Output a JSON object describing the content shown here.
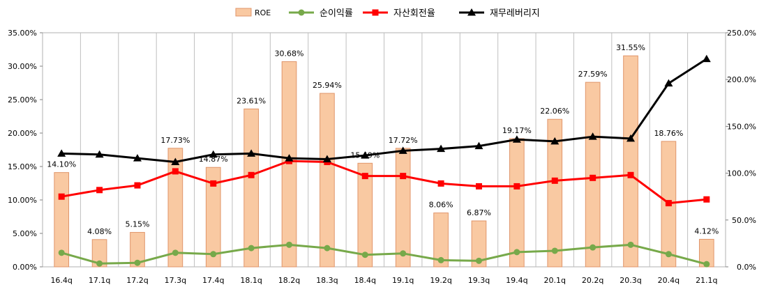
{
  "chart_data": {
    "type": "bar",
    "categories": [
      "16.4q",
      "17.1q",
      "17.2q",
      "17.3q",
      "17.4q",
      "18.1q",
      "18.2q",
      "18.3q",
      "18.4q",
      "19.1q",
      "19.2q",
      "19.3q",
      "19.4q",
      "20.1q",
      "20.2q",
      "20.3q",
      "20.4q",
      "21.1q"
    ],
    "bar_series": {
      "name": "ROE",
      "axis": "left",
      "values": [
        14.1,
        4.08,
        5.15,
        17.73,
        14.87,
        23.61,
        30.68,
        25.94,
        15.49,
        17.72,
        8.06,
        6.87,
        19.17,
        22.06,
        27.59,
        31.55,
        18.76,
        4.12
      ],
      "data_labels": [
        "14.10%",
        "4.08%",
        "5.15%",
        "17.73%",
        "14.87%",
        "23.61%",
        "30.68%",
        "25.94%",
        "15.49%",
        "17.72%",
        "8.06%",
        "6.87%",
        "19.17%",
        "22.06%",
        "27.59%",
        "31.55%",
        "18.76%",
        "4.12%"
      ],
      "fill": "#f9c9a2",
      "stroke": "#e0956a"
    },
    "line_series": [
      {
        "name": "순이익률",
        "axis": "left",
        "marker": "circle",
        "color": "#77a94a",
        "values": [
          2.1,
          0.5,
          0.6,
          2.1,
          1.9,
          2.8,
          3.3,
          2.8,
          1.8,
          2.0,
          1.0,
          0.9,
          2.2,
          2.4,
          2.9,
          3.3,
          1.9,
          0.4
        ]
      },
      {
        "name": "자산회전율",
        "axis": "right",
        "marker": "square",
        "color": "#ff0000",
        "values": [
          75,
          82,
          87,
          102,
          89,
          98,
          113,
          112,
          97,
          97,
          89,
          86,
          86,
          92,
          95,
          98,
          68,
          72
        ]
      },
      {
        "name": "재무레버리지",
        "axis": "right",
        "marker": "triangle",
        "color": "#000000",
        "values": [
          121,
          120,
          116,
          112,
          120,
          121,
          116,
          115,
          119,
          124,
          126,
          129,
          136,
          134,
          139,
          137,
          196,
          222
        ]
      }
    ],
    "y_left": {
      "min": 0,
      "max": 35,
      "ticks": [
        "0.00%",
        "5.00%",
        "10.00%",
        "15.00%",
        "20.00%",
        "25.00%",
        "30.00%",
        "35.00%"
      ]
    },
    "y_right": {
      "min": 0,
      "max": 250,
      "ticks": [
        "0.0%",
        "50.0%",
        "100.0%",
        "150.0%",
        "200.0%",
        "250.0%"
      ]
    },
    "legend": {
      "position": "top",
      "items": [
        "ROE",
        "순이익률",
        "자산회전율",
        "재무레버리지"
      ]
    },
    "grid": "vertical"
  }
}
